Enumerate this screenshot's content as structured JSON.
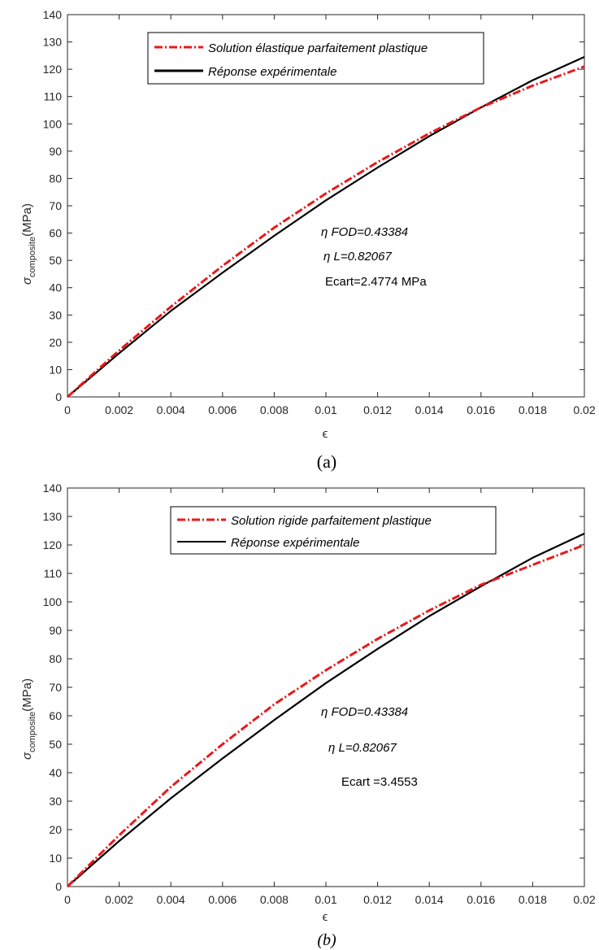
{
  "chart_data": [
    {
      "type": "line",
      "title": "",
      "caption": "(a)",
      "xlabel": "ϵ",
      "ylabel": {
        "base": "σ",
        "subscript": "composite",
        "unit": "(MPa)"
      },
      "xlim": [
        0,
        0.02
      ],
      "ylim": [
        0,
        140
      ],
      "xticks": [
        "0",
        "0.002",
        "0.004",
        "0.006",
        "0.008",
        "0.01",
        "0.012",
        "0.014",
        "0.016",
        "0.018",
        "0.02"
      ],
      "yticks": [
        "0",
        "10",
        "20",
        "30",
        "40",
        "50",
        "60",
        "70",
        "80",
        "90",
        "100",
        "110",
        "120",
        "130",
        "140"
      ],
      "grid": false,
      "legend_position": "top-center",
      "x": [
        0,
        0.002,
        0.004,
        0.006,
        0.008,
        0.01,
        0.012,
        0.014,
        0.016,
        0.018,
        0.02
      ],
      "series": [
        {
          "name": "Solution élastique parfaitement plastique",
          "color": "#e8191b",
          "style": "dashdot",
          "values": [
            0,
            17,
            33,
            48,
            62,
            74.5,
            86,
            96.5,
            106,
            114,
            121
          ]
        },
        {
          "name": "Réponse expérimentale",
          "color": "#000000",
          "style": "solid",
          "values": [
            0,
            16,
            31.5,
            45.5,
            59,
            72,
            84,
            95.5,
            106,
            116,
            124.5
          ]
        }
      ],
      "annotations": [
        "η FOD=0.43384",
        "η L=0.82067",
        "Ecart=2.4774 MPa"
      ]
    },
    {
      "type": "line",
      "title": "",
      "caption": "(b)",
      "xlabel": "ϵ",
      "ylabel": {
        "base": "σ",
        "subscript": "composite",
        "unit": "(MPa)"
      },
      "xlim": [
        0,
        0.02
      ],
      "ylim": [
        0,
        140
      ],
      "xticks": [
        "0",
        "0.002",
        "0.004",
        "0.006",
        "0.008",
        "0.01",
        "0.012",
        "0.014",
        "0.016",
        "0.018",
        "0.02"
      ],
      "yticks": [
        "0",
        "10",
        "20",
        "30",
        "40",
        "50",
        "60",
        "70",
        "80",
        "90",
        "100",
        "110",
        "120",
        "130",
        "140"
      ],
      "grid": false,
      "legend_position": "top-right",
      "x": [
        0,
        0.002,
        0.004,
        0.006,
        0.008,
        0.01,
        0.012,
        0.014,
        0.016,
        0.018,
        0.02
      ],
      "series": [
        {
          "name": "Solution rigide parfaitement plastique",
          "color": "#e8191b",
          "style": "dashdot",
          "values": [
            0,
            18,
            35,
            50,
            64,
            76,
            87,
            97,
            106,
            113,
            120
          ]
        },
        {
          "name": "Réponse expérimentale",
          "color": "#000000",
          "style": "solid",
          "values": [
            0,
            16,
            31,
            45,
            58.5,
            71.5,
            83.5,
            95,
            105.5,
            115.5,
            124
          ]
        }
      ],
      "annotations": [
        "η FOD=0.43384",
        "η L=0.82067",
        "Ecart =3.4553"
      ]
    }
  ]
}
